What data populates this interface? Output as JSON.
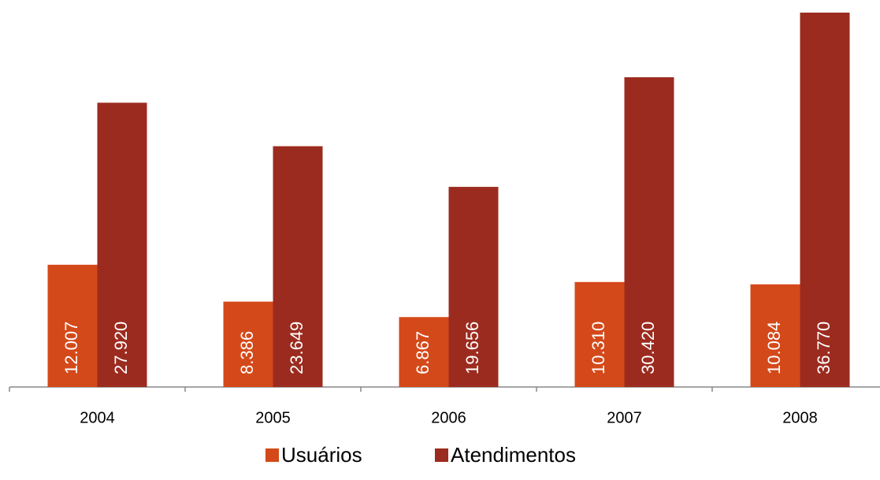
{
  "chart_data": {
    "type": "bar",
    "categories": [
      "2004",
      "2005",
      "2006",
      "2007",
      "2008"
    ],
    "series": [
      {
        "name": "Usuários",
        "color": "#d4491a",
        "values": [
          12007,
          8386,
          6867,
          10310,
          10084
        ],
        "value_labels": [
          "12.007",
          "8.386",
          "6.867",
          "10.310",
          "10.084"
        ]
      },
      {
        "name": "Atendimentos",
        "color": "#9c2b1f",
        "values": [
          27920,
          23649,
          19656,
          30420,
          36770
        ],
        "value_labels": [
          "27.920",
          "23.649",
          "19.656",
          "30.420",
          "36.770"
        ]
      }
    ]
  }
}
